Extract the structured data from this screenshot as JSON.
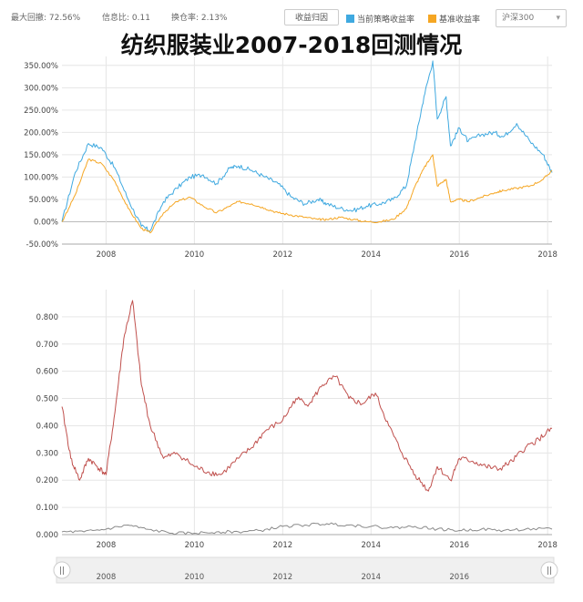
{
  "stats": {
    "max_drawdown": "最大回撤: 72.56%",
    "info_ratio": "信息比: 0.11",
    "turnover": "换仓率: 2.13%"
  },
  "toolbar": {
    "attribution_button": "收益归因",
    "benchmark_select": "沪深300"
  },
  "title": "纺织服装业2007-2018回测情况",
  "colors": {
    "strategy": "#3fa9e0",
    "benchmark": "#f5a623",
    "lower_red": "#c0504d",
    "lower_gray": "#8a8a8a",
    "grid": "#e6e6e6"
  },
  "chart_data": [
    {
      "type": "line",
      "ylim": [
        -0.5,
        3.7
      ],
      "y_ticks": [
        "-50.00%",
        "0.00%",
        "50.00%",
        "100.00%",
        "150.00%",
        "200.00%",
        "250.00%",
        "300.00%",
        "350.00%"
      ],
      "x_ticks": [
        "2008",
        "2010",
        "2012",
        "2014",
        "2016",
        "2018"
      ],
      "xlim": [
        2007.0,
        2018.1
      ],
      "legend": "top",
      "series": [
        {
          "name": "当前策略收益率",
          "x": [
            2007.0,
            2007.3,
            2007.6,
            2007.9,
            2008.2,
            2008.5,
            2008.8,
            2009.0,
            2009.3,
            2009.6,
            2009.9,
            2010.2,
            2010.5,
            2010.8,
            2011.0,
            2011.3,
            2011.6,
            2011.9,
            2012.2,
            2012.5,
            2012.8,
            2013.0,
            2013.3,
            2013.6,
            2013.9,
            2014.2,
            2014.5,
            2014.8,
            2015.0,
            2015.2,
            2015.4,
            2015.5,
            2015.7,
            2015.8,
            2016.0,
            2016.2,
            2016.5,
            2016.8,
            2017.0,
            2017.3,
            2017.6,
            2017.9,
            2018.1
          ],
          "values": [
            0.0,
            1.1,
            1.75,
            1.65,
            1.2,
            0.5,
            -0.1,
            -0.2,
            0.45,
            0.75,
            1.0,
            1.05,
            0.85,
            1.2,
            1.25,
            1.15,
            1.0,
            0.85,
            0.55,
            0.4,
            0.5,
            0.4,
            0.3,
            0.25,
            0.35,
            0.4,
            0.5,
            0.8,
            1.8,
            2.8,
            3.6,
            2.3,
            2.8,
            1.7,
            2.1,
            1.8,
            1.95,
            2.0,
            1.9,
            2.2,
            1.8,
            1.5,
            1.1
          ]
        },
        {
          "name": "基准收益率",
          "x": [
            2007.0,
            2007.3,
            2007.6,
            2007.9,
            2008.2,
            2008.5,
            2008.8,
            2009.0,
            2009.3,
            2009.6,
            2009.9,
            2010.2,
            2010.5,
            2010.8,
            2011.0,
            2011.3,
            2011.6,
            2011.9,
            2012.2,
            2012.5,
            2012.8,
            2013.0,
            2013.3,
            2013.6,
            2013.9,
            2014.2,
            2014.5,
            2014.8,
            2015.0,
            2015.2,
            2015.4,
            2015.5,
            2015.7,
            2015.8,
            2016.0,
            2016.2,
            2016.5,
            2016.8,
            2017.0,
            2017.3,
            2017.6,
            2017.9,
            2018.1
          ],
          "values": [
            0.0,
            0.6,
            1.4,
            1.3,
            0.9,
            0.3,
            -0.15,
            -0.25,
            0.2,
            0.45,
            0.55,
            0.35,
            0.2,
            0.35,
            0.45,
            0.4,
            0.3,
            0.2,
            0.15,
            0.1,
            0.05,
            0.05,
            0.1,
            0.05,
            0.0,
            0.0,
            0.05,
            0.3,
            0.8,
            1.2,
            1.5,
            0.8,
            0.95,
            0.45,
            0.5,
            0.45,
            0.55,
            0.65,
            0.7,
            0.75,
            0.8,
            0.95,
            1.15
          ]
        }
      ]
    },
    {
      "type": "line",
      "ylim": [
        0.0,
        0.9
      ],
      "y_ticks": [
        "0.000",
        "0.100",
        "0.200",
        "0.300",
        "0.400",
        "0.500",
        "0.600",
        "0.700",
        "0.800"
      ],
      "x_ticks": [
        "2008",
        "2010",
        "2012",
        "2014",
        "2016",
        "2018"
      ],
      "xlim": [
        2007.0,
        2018.1
      ],
      "series": [
        {
          "x": [
            2007.0,
            2007.2,
            2007.4,
            2007.6,
            2007.8,
            2008.0,
            2008.2,
            2008.4,
            2008.6,
            2008.8,
            2009.0,
            2009.3,
            2009.6,
            2010.0,
            2010.3,
            2010.6,
            2011.0,
            2011.3,
            2011.6,
            2012.0,
            2012.3,
            2012.6,
            2012.9,
            2013.2,
            2013.5,
            2013.8,
            2014.1,
            2014.4,
            2014.7,
            2015.0,
            2015.3,
            2015.5,
            2015.8,
            2016.0,
            2016.3,
            2016.6,
            2016.9,
            2017.2,
            2017.5,
            2017.8,
            2018.1
          ],
          "values": [
            0.47,
            0.28,
            0.2,
            0.28,
            0.25,
            0.22,
            0.45,
            0.72,
            0.86,
            0.55,
            0.4,
            0.28,
            0.3,
            0.25,
            0.23,
            0.22,
            0.28,
            0.32,
            0.38,
            0.42,
            0.5,
            0.48,
            0.55,
            0.58,
            0.5,
            0.48,
            0.52,
            0.4,
            0.3,
            0.22,
            0.16,
            0.25,
            0.2,
            0.28,
            0.27,
            0.25,
            0.24,
            0.27,
            0.32,
            0.35,
            0.39
          ]
        },
        {
          "x": [
            2007.0,
            2007.5,
            2008.0,
            2008.5,
            2008.9,
            2009.5,
            2010.0,
            2010.5,
            2011.0,
            2011.5,
            2012.0,
            2012.5,
            2013.0,
            2013.5,
            2014.0,
            2014.5,
            2015.0,
            2015.5,
            2016.0,
            2016.5,
            2017.0,
            2017.5,
            2018.1
          ],
          "values": [
            0.01,
            0.01,
            0.02,
            0.035,
            0.02,
            0.005,
            0.005,
            0.01,
            0.01,
            0.015,
            0.03,
            0.035,
            0.04,
            0.035,
            0.03,
            0.025,
            0.03,
            0.02,
            0.015,
            0.02,
            0.015,
            0.02,
            0.02
          ]
        }
      ]
    }
  ],
  "navigator": {
    "x_ticks": [
      "2008",
      "2010",
      "2012",
      "2014",
      "2016"
    ],
    "handle_glyph": "||"
  }
}
